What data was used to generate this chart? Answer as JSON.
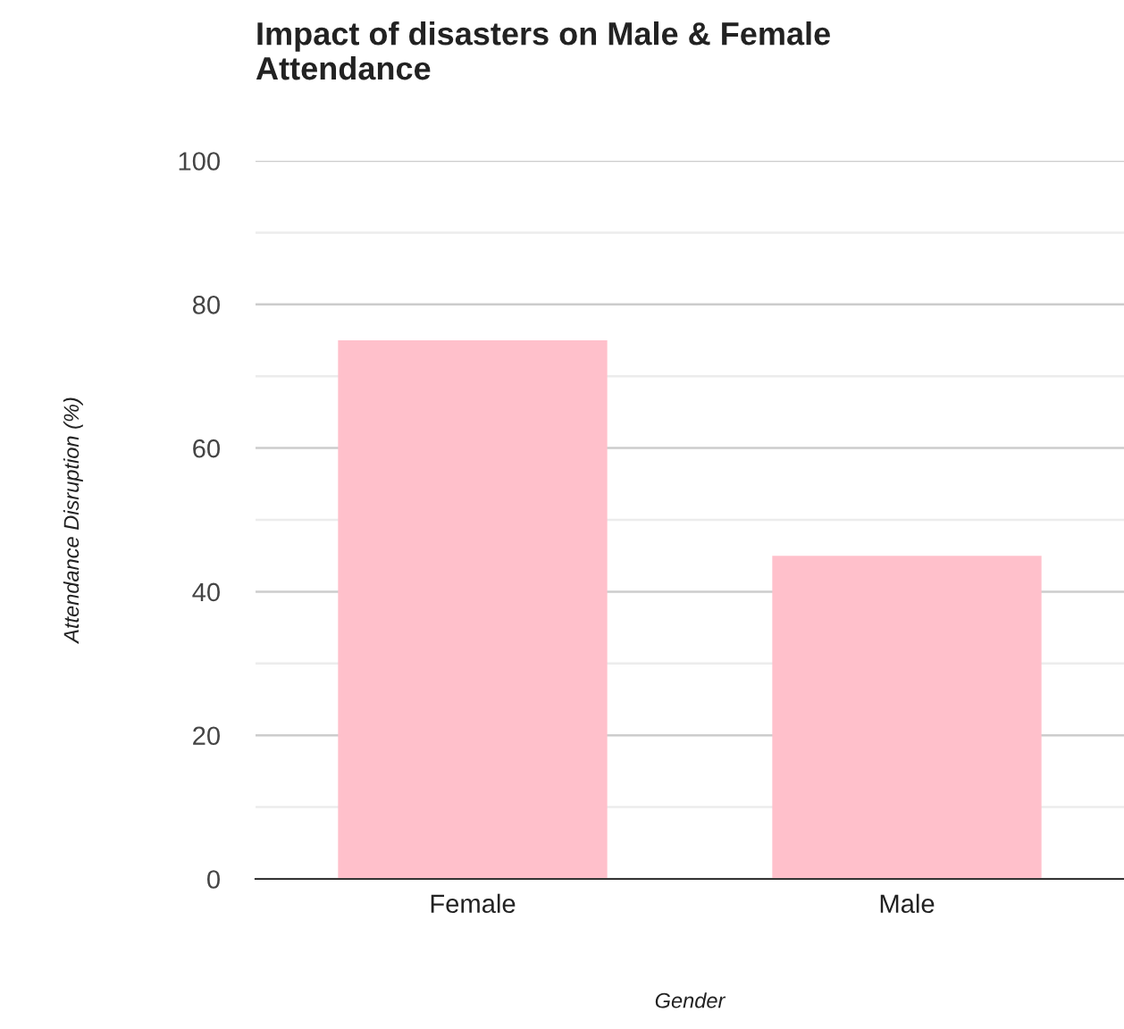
{
  "chart_data": {
    "type": "bar",
    "title": "Impact of disasters on Male & Female\nAttendance",
    "xlabel": "Gender",
    "ylabel": "Attendance Disruption (%)",
    "categories": [
      "Female",
      "Male"
    ],
    "series": [
      {
        "color": "#ffc0cb",
        "values": [
          75,
          45
        ]
      }
    ],
    "ylim": [
      0,
      100
    ],
    "yticks": [
      0,
      {
        "value": 10,
        "label": null
      },
      20,
      {
        "value": 30,
        "label": null
      },
      40,
      {
        "value": 50,
        "label": null
      },
      60,
      {
        "value": 70,
        "label": null
      },
      80,
      {
        "value": 90,
        "label": null
      },
      100
    ],
    "grid": "y"
  }
}
